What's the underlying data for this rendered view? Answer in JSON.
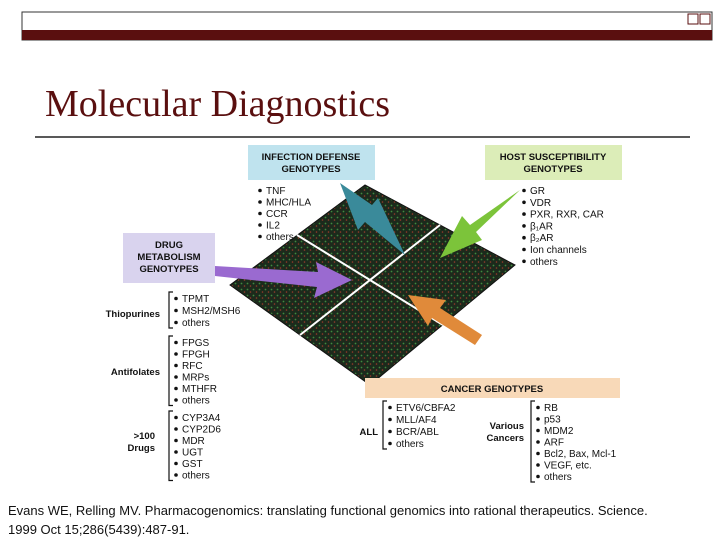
{
  "header": {
    "title": "Molecular Diagnostics"
  },
  "figure": {
    "boxes": [
      {
        "lines": [
          "INFECTION DEFENSE",
          "GENOTYPES"
        ]
      },
      {
        "lines": [
          "HOST SUSCEPTIBILITY",
          "GENOTYPES"
        ]
      },
      {
        "lines": [
          "DRUG",
          "METABOLISM",
          "GENOTYPES"
        ]
      },
      {
        "lines": [
          "CANCER GENOTYPES"
        ]
      }
    ],
    "lists": [
      {
        "label": [],
        "items": [
          "TNF",
          "MHC/HLA",
          "CCR",
          "IL2",
          "others"
        ]
      },
      {
        "label": [],
        "items": [
          "GR",
          "VDR",
          "PXR, RXR, CAR",
          "β₁AR",
          "β₂AR",
          "Ion channels",
          "others"
        ]
      },
      {
        "label": [
          "Thiopurines"
        ],
        "items": [
          "TPMT",
          "MSH2/MSH6",
          "others"
        ]
      },
      {
        "label": [
          "Antifolates"
        ],
        "items": [
          "FPGS",
          "FPGH",
          "RFC",
          "MRPs",
          "MTHFR",
          "others"
        ]
      },
      {
        "label": [
          ">100",
          "Drugs"
        ],
        "items": [
          "CYP3A4",
          "CYP2D6",
          "MDR",
          "UGT",
          "GST",
          "others"
        ]
      },
      {
        "label": [
          "ALL"
        ],
        "items": [
          "ETV6/CBFA2",
          "MLL/AF4",
          "BCR/ABL",
          "others"
        ]
      },
      {
        "label": [
          "Various",
          "Cancers"
        ],
        "items": [
          "RB",
          "p53",
          "MDM2",
          "ARF",
          "Bcl2, Bax, Mcl-1",
          "VEGF, etc.",
          "others"
        ]
      }
    ]
  },
  "citation": [
    "Evans WE, Relling MV.  Pharmacogenomics: translating functional genomics into rational therapeutics.  Science.",
    "1999 Oct 15;286(5439):487-91."
  ]
}
